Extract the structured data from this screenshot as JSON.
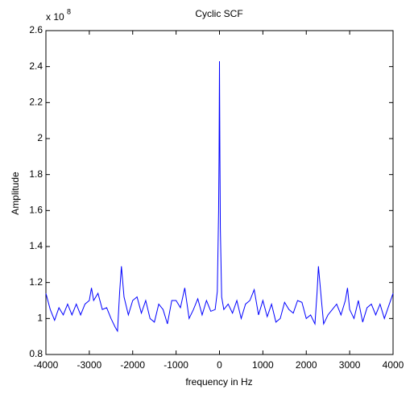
{
  "chart_data": {
    "type": "line",
    "title": "Cyclic SCF",
    "xlabel": "frequency in Hz",
    "ylabel": "Amplitude",
    "y_multiplier": "x 10",
    "y_multiplier_exponent": "8",
    "color": "#0000ff",
    "x": [
      -4000,
      -3900,
      -3800,
      -3700,
      -3600,
      -3500,
      -3400,
      -3300,
      -3200,
      -3100,
      -3000,
      -2950,
      -2900,
      -2800,
      -2700,
      -2600,
      -2500,
      -2400,
      -2350,
      -2300,
      -2260,
      -2200,
      -2100,
      -2000,
      -1900,
      -1800,
      -1700,
      -1600,
      -1500,
      -1400,
      -1300,
      -1200,
      -1100,
      -1000,
      -900,
      -800,
      -700,
      -600,
      -500,
      -400,
      -300,
      -200,
      -100,
      -50,
      -20,
      -10,
      0,
      10,
      20,
      50,
      100,
      200,
      300,
      400,
      500,
      600,
      700,
      800,
      900,
      1000,
      1100,
      1200,
      1300,
      1400,
      1500,
      1600,
      1700,
      1800,
      1900,
      2000,
      2100,
      2200,
      2250,
      2280,
      2350,
      2400,
      2500,
      2600,
      2700,
      2800,
      2900,
      2950,
      3000,
      3100,
      3200,
      3300,
      3400,
      3500,
      3600,
      3700,
      3800,
      3900,
      4000
    ],
    "values": [
      1.14,
      1.05,
      0.99,
      1.06,
      1.02,
      1.08,
      1.02,
      1.08,
      1.02,
      1.08,
      1.1,
      1.17,
      1.1,
      1.14,
      1.05,
      1.06,
      1.0,
      0.95,
      0.93,
      1.15,
      1.29,
      1.12,
      1.02,
      1.1,
      1.12,
      1.03,
      1.1,
      1.0,
      0.98,
      1.08,
      1.05,
      0.97,
      1.1,
      1.1,
      1.06,
      1.17,
      1.0,
      1.05,
      1.11,
      1.02,
      1.1,
      1.04,
      1.05,
      1.15,
      1.6,
      1.9,
      2.43,
      1.9,
      1.5,
      1.12,
      1.05,
      1.08,
      1.03,
      1.1,
      1.0,
      1.08,
      1.1,
      1.16,
      1.02,
      1.1,
      1.01,
      1.08,
      0.98,
      1.0,
      1.09,
      1.05,
      1.03,
      1.1,
      1.09,
      1.0,
      1.02,
      0.97,
      1.15,
      1.29,
      1.1,
      0.97,
      1.02,
      1.05,
      1.08,
      1.02,
      1.1,
      1.17,
      1.05,
      1.0,
      1.1,
      0.98,
      1.06,
      1.08,
      1.02,
      1.08,
      1.0,
      1.07,
      1.14
    ],
    "xlim": [
      -4000,
      4000
    ],
    "ylim": [
      0.8,
      2.6
    ],
    "xticks": [
      -4000,
      -3000,
      -2000,
      -1000,
      0,
      1000,
      2000,
      3000,
      4000
    ],
    "yticks": [
      0.8,
      1,
      1.2,
      1.4,
      1.6,
      1.8,
      2,
      2.2,
      2.4,
      2.6
    ],
    "grid": false
  }
}
